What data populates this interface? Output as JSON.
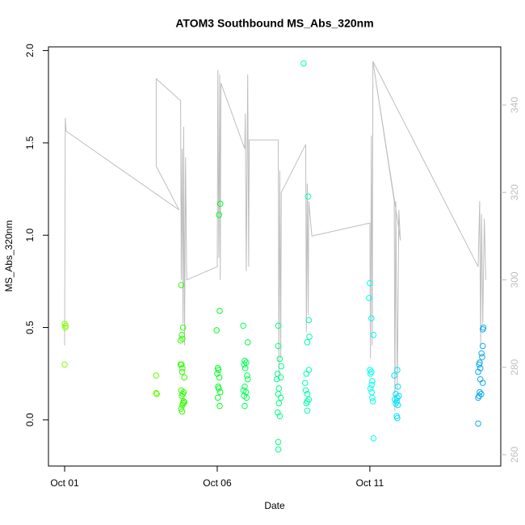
{
  "chart_data": {
    "type": "scatter",
    "title": "ATOM3 Southbound MS_Abs_320nm",
    "x_label": "Date",
    "y_label": "MS_Abs_320nm",
    "xlim": [
      -0.53,
      14.29
    ],
    "xticks": [
      {
        "value": 0,
        "label": "Oct 01"
      },
      {
        "value": 5,
        "label": "Oct 06"
      },
      {
        "value": 10,
        "label": "Oct 11"
      }
    ],
    "ylim": [
      -0.25,
      2.02
    ],
    "yticks": [
      {
        "value": 0,
        "label": "0.0"
      },
      0.5,
      {
        "value": 1,
        "label": "1.0"
      },
      1.5,
      {
        "value": 2,
        "label": "2.0"
      }
    ],
    "y2lim": [
      257.4,
      353.3
    ],
    "y2ticks": [
      260,
      280,
      300,
      320,
      340
    ],
    "series": [
      {
        "color": "#80ff00",
        "x": [
          0,
          0.02,
          0.03,
          0
        ],
        "values": [
          0.52,
          0.5,
          0.51,
          0.3
        ]
      },
      {
        "color": "#60ff00",
        "x": [
          3.0,
          3.0,
          3.02
        ],
        "values": [
          0.24,
          0.145,
          0.14
        ]
      },
      {
        "color": "#30ff00",
        "x": [
          3.82,
          3.86,
          3.8,
          3.88,
          3.84,
          3.8,
          3.83,
          3.86,
          3.85,
          3.92,
          3.82,
          3.9,
          3.87,
          3.84,
          3.9,
          3.88,
          3.86,
          3.82,
          3.85,
          3.92
        ],
        "values": [
          0.73,
          0.44,
          0.43,
          0.5,
          0.46,
          0.3,
          0.3,
          0.28,
          0.26,
          0.23,
          0.16,
          0.15,
          0.14,
          0.13,
          0.1,
          0.09,
          0.08,
          0.06,
          0.045,
          0.095
        ]
      },
      {
        "color": "#00ff22",
        "x": [
          5.1,
          5.06,
          5.08,
          4.98,
          5.02,
          5.04,
          5.0,
          5.07,
          5.03,
          5.05,
          5.1,
          5.02,
          5.08
        ],
        "values": [
          1.17,
          1.11,
          0.59,
          0.485,
          0.28,
          0.27,
          0.25,
          0.23,
          0.18,
          0.17,
          0.15,
          0.12,
          0.075
        ]
      },
      {
        "color": "#00ff55",
        "x": [
          5.85,
          6.0,
          5.9,
          5.95,
          5.88,
          5.92,
          5.98,
          6.0,
          5.9,
          5.86,
          5.94,
          5.88,
          5.96,
          5.9
        ],
        "values": [
          0.51,
          0.42,
          0.32,
          0.31,
          0.3,
          0.28,
          0.24,
          0.22,
          0.18,
          0.16,
          0.15,
          0.13,
          0.12,
          0.075
        ]
      },
      {
        "color": "#00ff80",
        "x": [
          7.0,
          7.0,
          7.05,
          7.1,
          6.98,
          7.08,
          6.95,
          7.02,
          7.0,
          7.08,
          7.02,
          6.98,
          7.05,
          7.0,
          7.0
        ],
        "values": [
          0.51,
          0.4,
          0.33,
          0.29,
          0.25,
          0.23,
          0.22,
          0.17,
          0.14,
          0.12,
          0.09,
          0.04,
          0.02,
          -0.12,
          -0.16
        ]
      },
      {
        "color": "#00ffaa",
        "x": [
          7.83,
          7.98,
          8.0,
          8.02,
          7.95,
          8.0,
          7.92,
          7.88,
          7.9,
          7.95,
          8.0,
          7.95,
          7.92,
          7.95
        ],
        "values": [
          1.93,
          1.21,
          0.54,
          0.45,
          0.42,
          0.27,
          0.25,
          0.2,
          0.16,
          0.14,
          0.11,
          0.1,
          0.09,
          0.05
        ]
      },
      {
        "color": "#00ffee",
        "x": [
          10.0,
          9.98,
          10.05,
          10.12,
          10.0,
          10.05,
          10.02,
          10.08,
          10.06,
          10.02,
          10.06,
          10.08,
          10.1,
          10.12
        ],
        "values": [
          0.74,
          0.66,
          0.55,
          0.46,
          0.27,
          0.26,
          0.25,
          0.21,
          0.19,
          0.17,
          0.15,
          0.12,
          0.1,
          -0.1
        ]
      },
      {
        "color": "#00e0ff",
        "x": [
          10.9,
          10.8,
          10.92,
          10.85,
          10.95,
          10.9,
          10.82,
          10.88,
          10.85,
          10.92,
          10.88,
          10.9
        ],
        "values": [
          0.27,
          0.24,
          0.18,
          0.14,
          0.13,
          0.12,
          0.11,
          0.1,
          0.09,
          0.08,
          0.02,
          0.01
        ]
      },
      {
        "color": "#0aa8f0",
        "x": [
          13.72,
          13.7,
          13.7,
          13.66,
          13.68,
          13.6,
          13.58,
          13.62,
          13.55,
          13.62,
          13.7,
          13.6,
          13.65,
          13.58,
          13.55,
          13.55
        ],
        "values": [
          0.5,
          0.49,
          0.4,
          0.36,
          0.34,
          0.31,
          0.3,
          0.28,
          0.26,
          0.22,
          0.2,
          0.15,
          0.14,
          0.13,
          0.12,
          -0.02
        ]
      }
    ],
    "line": {
      "color": "#bebebe",
      "axis": "y2",
      "x": [
        0,
        0.02,
        0.05,
        3.75,
        3.0,
        3.0,
        3.8,
        3.82,
        3.85,
        3.88,
        3.9,
        3.93,
        3.96,
        4.0,
        5.0,
        5.02,
        5.05,
        5.08,
        5.1,
        5.12,
        5.9,
        5.92,
        5.95,
        6.0,
        6.03,
        6.05,
        7.0,
        7.02,
        7.05,
        7.08,
        7.1,
        7.9,
        7.92,
        7.95,
        7.98,
        8.0,
        8.1,
        10.0,
        10.02,
        10.05,
        10.08,
        10.1,
        10.8,
        10.82,
        10.85,
        10.9,
        10.95,
        11.0,
        10.9,
        10.1,
        13.55,
        13.6,
        13.63,
        13.66,
        13.7,
        13.75,
        13.8
      ],
      "values": [
        285,
        337,
        334,
        316,
        326,
        346,
        341,
        300,
        330,
        290,
        335,
        285,
        328,
        300,
        303,
        348,
        305,
        347,
        300,
        345,
        330,
        338,
        302,
        347,
        303,
        332,
        332,
        278,
        325,
        282,
        320,
        331,
        288,
        322,
        292,
        318,
        310,
        313,
        282,
        333,
        285,
        350,
        318,
        270,
        318,
        275,
        316,
        309,
        314,
        350,
        303,
        318,
        285,
        315,
        290,
        314,
        300
      ]
    }
  }
}
